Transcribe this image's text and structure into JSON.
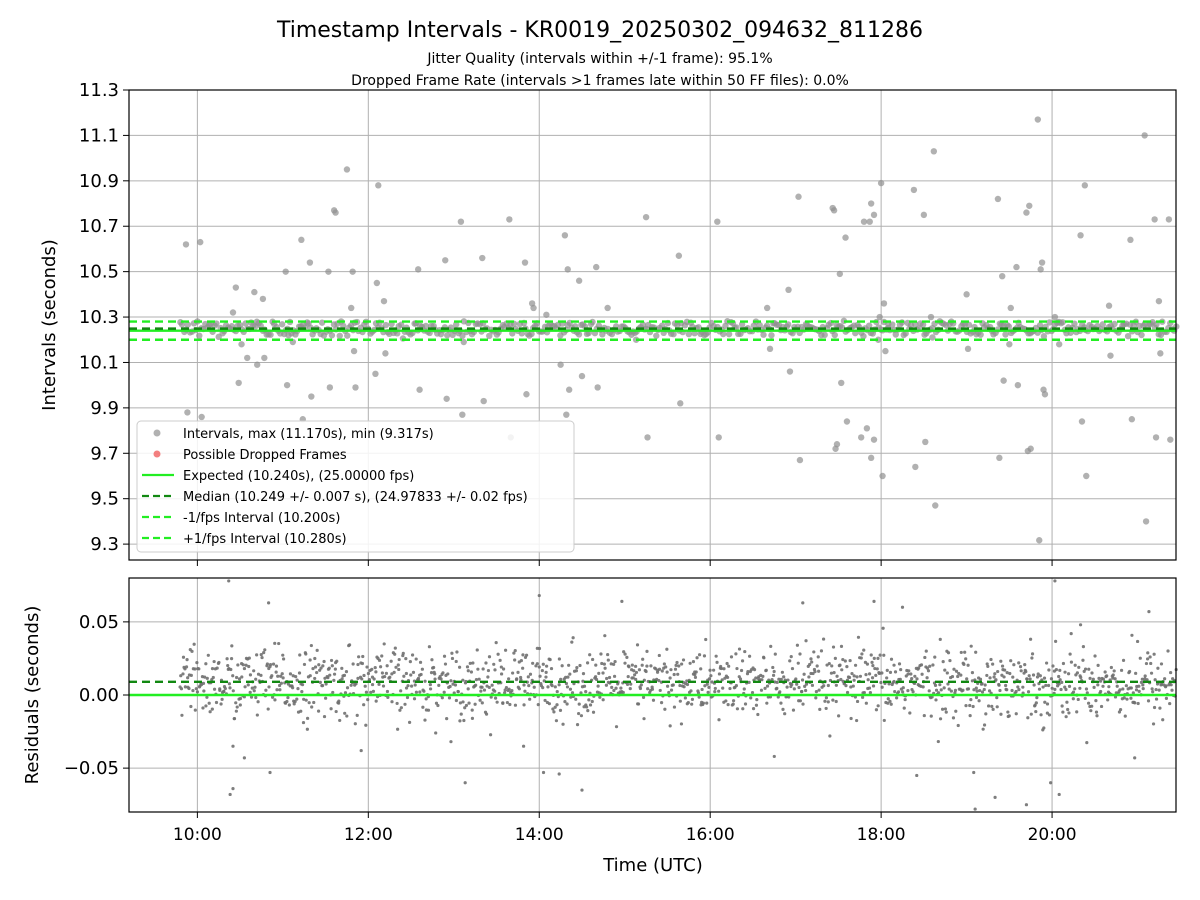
{
  "figure": {
    "title": "Timestamp Intervals - KR0019_20250302_094632_811286",
    "subtitle_line1": "Jitter Quality (intervals within +/-1 frame): 95.1%",
    "subtitle_line2": "Dropped Frame Rate (intervals >1 frames late within 50 FF files): 0.0%"
  },
  "chart_data": [
    {
      "type": "scatter",
      "panel": "top",
      "ylabel": "Intervals (seconds)",
      "xlabel": "",
      "x_unit": "time of day (UTC)",
      "xlim": [
        "09:12",
        "21:27"
      ],
      "ylim": [
        9.23,
        11.3
      ],
      "yticks": [
        9.3,
        9.5,
        9.7,
        9.9,
        10.1,
        10.3,
        10.5,
        10.7,
        10.9,
        11.1,
        11.3
      ],
      "ytick_labels": [
        "9.3",
        "9.5",
        "9.7",
        "9.9",
        "10.1",
        "10.3",
        "10.5",
        "10.7",
        "10.9",
        "11.1",
        "11.3"
      ],
      "xticks": [
        "10:00",
        "12:00",
        "14:00",
        "16:00",
        "18:00",
        "20:00"
      ],
      "grid": true,
      "legend_position": "lower-left",
      "legend": [
        {
          "label": "Intervals, max (11.170s), min (9.317s)",
          "marker": "dot",
          "color": "#909090"
        },
        {
          "label": "Possible Dropped Frames",
          "marker": "dot",
          "color": "#f06060"
        },
        {
          "label": "Expected (10.240s), (25.00000 fps)",
          "marker": "solid",
          "color": "#22ee22"
        },
        {
          "label": "Median (10.249 +/- 0.007 s), (24.97833 +/- 0.02 fps)",
          "marker": "dashed",
          "color": "#118811"
        },
        {
          "label": "-1/fps Interval (10.200s)",
          "marker": "dashed",
          "color": "#22ee22"
        },
        {
          "label": "+1/fps Interval (10.280s)",
          "marker": "dashed",
          "color": "#22ee22"
        }
      ],
      "reference_lines": [
        {
          "name": "Expected",
          "y": 10.24,
          "style": "solid",
          "color": "#22ee22"
        },
        {
          "name": "Median",
          "y": 10.249,
          "style": "dashed",
          "color": "#118811"
        },
        {
          "name": "-1/fps Interval",
          "y": 10.2,
          "style": "dashed",
          "color": "#22ee22"
        },
        {
          "name": "+1/fps Interval",
          "y": 10.28,
          "style": "dashed",
          "color": "#22ee22"
        }
      ],
      "series": [
        {
          "name": "Intervals",
          "color": "#909090",
          "points": [
            [
              "09:52",
              10.62
            ],
            [
              "09:53",
              9.88
            ],
            [
              "10:02",
              10.63
            ],
            [
              "10:03",
              9.86
            ],
            [
              "10:25",
              10.32
            ],
            [
              "10:27",
              10.43
            ],
            [
              "10:29",
              10.01
            ],
            [
              "10:31",
              10.18
            ],
            [
              "10:35",
              10.12
            ],
            [
              "10:40",
              10.41
            ],
            [
              "10:42",
              10.09
            ],
            [
              "10:46",
              10.38
            ],
            [
              "10:47",
              10.12
            ],
            [
              "11:02",
              10.5
            ],
            [
              "11:03",
              10.0
            ],
            [
              "11:04",
              10.22
            ],
            [
              "11:07",
              10.19
            ],
            [
              "11:13",
              10.64
            ],
            [
              "11:14",
              9.85
            ],
            [
              "11:19",
              10.54
            ],
            [
              "11:20",
              9.95
            ],
            [
              "11:32",
              10.5
            ],
            [
              "11:33",
              9.99
            ],
            [
              "11:36",
              10.77
            ],
            [
              "11:37",
              10.76
            ],
            [
              "11:45",
              10.95
            ],
            [
              "11:48",
              10.34
            ],
            [
              "11:49",
              10.5
            ],
            [
              "11:50",
              10.15
            ],
            [
              "11:51",
              9.99
            ],
            [
              "12:05",
              10.05
            ],
            [
              "12:06",
              10.45
            ],
            [
              "12:07",
              10.88
            ],
            [
              "12:11",
              10.37
            ],
            [
              "12:12",
              10.14
            ],
            [
              "12:35",
              10.51
            ],
            [
              "12:36",
              9.98
            ],
            [
              "12:54",
              10.55
            ],
            [
              "12:55",
              9.94
            ],
            [
              "13:05",
              10.72
            ],
            [
              "13:06",
              9.87
            ],
            [
              "13:07",
              10.19
            ],
            [
              "13:20",
              10.56
            ],
            [
              "13:21",
              9.93
            ],
            [
              "13:39",
              10.73
            ],
            [
              "13:40",
              9.77
            ],
            [
              "13:50",
              10.54
            ],
            [
              "13:51",
              9.96
            ],
            [
              "13:55",
              10.36
            ],
            [
              "13:56",
              10.34
            ],
            [
              "14:05",
              10.31
            ],
            [
              "14:15",
              10.09
            ],
            [
              "14:18",
              10.66
            ],
            [
              "14:19",
              9.87
            ],
            [
              "14:20",
              10.51
            ],
            [
              "14:21",
              9.98
            ],
            [
              "14:28",
              10.46
            ],
            [
              "14:30",
              10.04
            ],
            [
              "14:40",
              10.52
            ],
            [
              "14:41",
              9.99
            ],
            [
              "14:48",
              10.34
            ],
            [
              "15:08",
              10.2
            ],
            [
              "15:15",
              10.74
            ],
            [
              "15:16",
              9.77
            ],
            [
              "15:38",
              10.57
            ],
            [
              "15:39",
              9.92
            ],
            [
              "16:05",
              10.72
            ],
            [
              "16:06",
              9.77
            ],
            [
              "16:40",
              10.34
            ],
            [
              "16:42",
              10.16
            ],
            [
              "16:55",
              10.42
            ],
            [
              "16:56",
              10.06
            ],
            [
              "17:02",
              10.83
            ],
            [
              "17:03",
              9.67
            ],
            [
              "17:26",
              10.78
            ],
            [
              "17:27",
              10.77
            ],
            [
              "17:28",
              9.72
            ],
            [
              "17:29",
              9.74
            ],
            [
              "17:31",
              10.49
            ],
            [
              "17:32",
              10.01
            ],
            [
              "17:35",
              10.65
            ],
            [
              "17:36",
              9.84
            ],
            [
              "17:48",
              10.72
            ],
            [
              "17:52",
              10.72
            ],
            [
              "17:53",
              10.8
            ],
            [
              "17:55",
              10.75
            ],
            [
              "17:46",
              9.77
            ],
            [
              "17:50",
              9.81
            ],
            [
              "17:53",
              9.68
            ],
            [
              "17:55",
              9.76
            ],
            [
              "17:58",
              10.2
            ],
            [
              "17:59",
              10.3
            ],
            [
              "18:00",
              10.89
            ],
            [
              "18:01",
              9.6
            ],
            [
              "18:02",
              10.36
            ],
            [
              "18:03",
              10.15
            ],
            [
              "18:05",
              10.27
            ],
            [
              "18:23",
              10.86
            ],
            [
              "18:24",
              9.64
            ],
            [
              "18:30",
              10.75
            ],
            [
              "18:31",
              9.75
            ],
            [
              "18:35",
              10.3
            ],
            [
              "18:36",
              10.21
            ],
            [
              "18:37",
              11.03
            ],
            [
              "18:38",
              9.47
            ],
            [
              "19:00",
              10.4
            ],
            [
              "19:01",
              10.16
            ],
            [
              "19:22",
              10.82
            ],
            [
              "19:23",
              9.68
            ],
            [
              "19:25",
              10.48
            ],
            [
              "19:26",
              10.02
            ],
            [
              "19:30",
              10.18
            ],
            [
              "19:31",
              10.34
            ],
            [
              "19:35",
              10.52
            ],
            [
              "19:36",
              10.0
            ],
            [
              "19:42",
              10.76
            ],
            [
              "19:43",
              9.71
            ],
            [
              "19:44",
              10.79
            ],
            [
              "19:45",
              9.72
            ],
            [
              "19:52",
              10.51
            ],
            [
              "19:53",
              10.54
            ],
            [
              "19:54",
              9.98
            ],
            [
              "19:55",
              9.96
            ],
            [
              "19:50",
              11.17
            ],
            [
              "19:51",
              9.317
            ],
            [
              "20:02",
              10.3
            ],
            [
              "20:05",
              10.18
            ],
            [
              "20:20",
              10.66
            ],
            [
              "20:21",
              9.84
            ],
            [
              "20:23",
              10.88
            ],
            [
              "20:24",
              9.6
            ],
            [
              "20:40",
              10.35
            ],
            [
              "20:41",
              10.13
            ],
            [
              "20:55",
              10.64
            ],
            [
              "20:56",
              9.85
            ],
            [
              "21:05",
              11.1
            ],
            [
              "21:06",
              9.4
            ],
            [
              "21:12",
              10.73
            ],
            [
              "21:13",
              9.77
            ],
            [
              "21:15",
              10.37
            ],
            [
              "21:16",
              10.14
            ],
            [
              "21:22",
              10.73
            ],
            [
              "21:23",
              9.76
            ]
          ],
          "band": {
            "from": "09:48",
            "to": "21:27",
            "center": 10.249,
            "spread": 0.03,
            "count": 520
          }
        },
        {
          "name": "Possible Dropped Frames",
          "color": "#f06060",
          "points": []
        }
      ]
    },
    {
      "type": "scatter",
      "panel": "bottom",
      "ylabel": "Residuals (seconds)",
      "xlabel": "Time (UTC)",
      "xlim": [
        "09:12",
        "21:27"
      ],
      "ylim": [
        -0.08,
        0.08
      ],
      "yticks": [
        -0.05,
        0.0,
        0.05
      ],
      "ytick_labels": [
        "−0.05",
        "0.00",
        "0.05"
      ],
      "xticks": [
        "10:00",
        "12:00",
        "14:00",
        "16:00",
        "18:00",
        "20:00"
      ],
      "grid": true,
      "reference_lines": [
        {
          "name": "Expected",
          "y": 0.0,
          "style": "solid",
          "color": "#22ee22"
        },
        {
          "name": "Median",
          "y": 0.009,
          "style": "dashed",
          "color": "#118811"
        }
      ],
      "series": [
        {
          "name": "Residuals",
          "color": "#707070",
          "points": [
            [
              "10:22",
              0.078
            ],
            [
              "10:23",
              -0.068
            ],
            [
              "10:25",
              -0.064
            ],
            [
              "10:33",
              -0.043
            ],
            [
              "10:25",
              -0.035
            ],
            [
              "10:50",
              0.063
            ],
            [
              "10:51",
              -0.053
            ],
            [
              "11:55",
              -0.038
            ],
            [
              "13:08",
              -0.06
            ],
            [
              "13:49",
              -0.035
            ],
            [
              "14:00",
              0.068
            ],
            [
              "14:03",
              -0.053
            ],
            [
              "14:14",
              -0.054
            ],
            [
              "14:30",
              -0.065
            ],
            [
              "14:58",
              0.064
            ],
            [
              "16:45",
              -0.042
            ],
            [
              "17:05",
              0.063
            ],
            [
              "17:55",
              0.064
            ],
            [
              "18:15",
              0.06
            ],
            [
              "18:25",
              -0.055
            ],
            [
              "19:06",
              -0.078
            ],
            [
              "19:05",
              -0.053
            ],
            [
              "19:20",
              -0.07
            ],
            [
              "19:42",
              -0.075
            ],
            [
              "19:59",
              -0.06
            ],
            [
              "20:02",
              0.078
            ],
            [
              "20:05",
              -0.068
            ],
            [
              "20:58",
              -0.043
            ],
            [
              "21:08",
              0.057
            ],
            [
              "20:20",
              0.048
            ]
          ],
          "band": {
            "from": "09:48",
            "to": "21:27",
            "center": 0.008,
            "spread": 0.03,
            "count": 1500
          }
        }
      ]
    }
  ]
}
